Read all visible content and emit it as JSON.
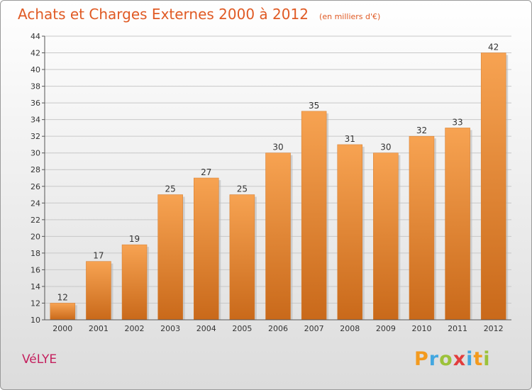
{
  "header": {
    "title": "Achats et Charges Externes 2000 à 2012",
    "subtitle": "(en milliers d'€)"
  },
  "footer": {
    "commune": "VéLYE",
    "logo_text": "Proxiti"
  },
  "colors": {
    "title": "#e05a24",
    "commune": "#c41f5d",
    "bar_top": "#f7a352",
    "bar_bottom": "#c9691a",
    "grid": "#c8c8c8"
  },
  "chart_data": {
    "type": "bar",
    "categories": [
      "2000",
      "2001",
      "2002",
      "2003",
      "2004",
      "2005",
      "2006",
      "2007",
      "2008",
      "2009",
      "2010",
      "2011",
      "2012"
    ],
    "values": [
      12,
      17,
      19,
      25,
      27,
      25,
      30,
      35,
      31,
      30,
      32,
      33,
      42
    ],
    "ylim": [
      10,
      44
    ],
    "yticks": [
      10,
      12,
      14,
      16,
      18,
      20,
      22,
      24,
      26,
      28,
      30,
      32,
      34,
      36,
      38,
      40,
      42,
      44
    ],
    "grid": true,
    "data_labels": true,
    "xlabel": "",
    "ylabel": ""
  }
}
